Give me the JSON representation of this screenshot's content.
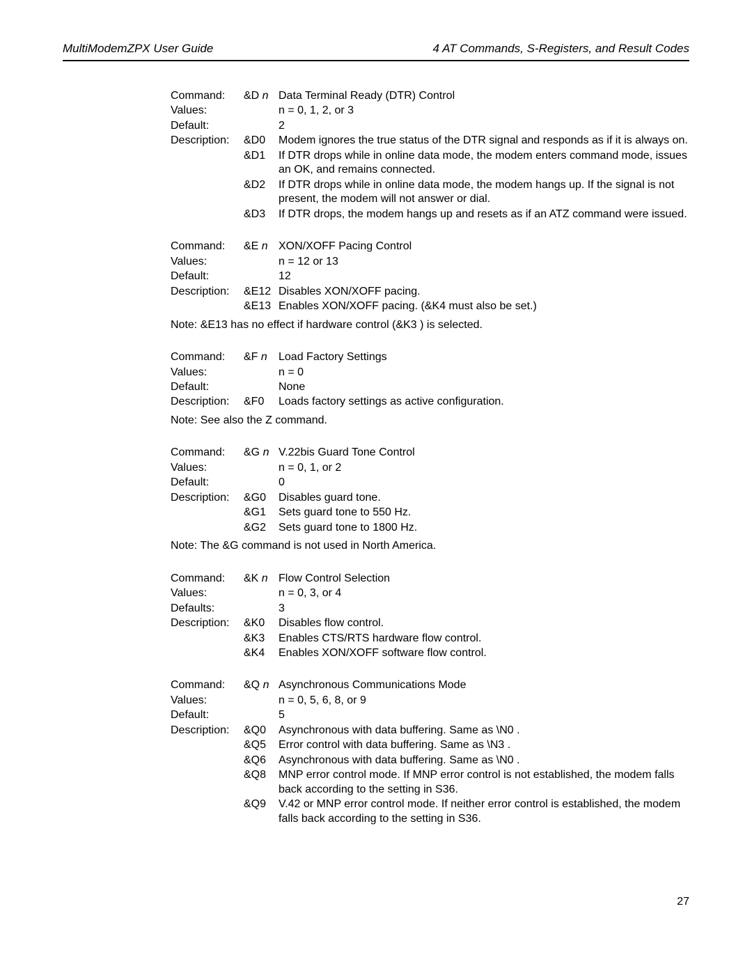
{
  "header": {
    "left": "MultiModemZPX User Guide",
    "right": "4   AT Commands, S-Registers, and Result Codes"
  },
  "page_number": "27",
  "blocks": [
    {
      "cmd_prefix": "&D",
      "title": "Data Terminal Ready (DTR) Control",
      "values": "n = 0, 1, 2, or 3",
      "default_label": "Default:",
      "default_val": "2",
      "desc": [
        {
          "code": "&D0",
          "text": "Modem ignores the true status of the DTR signal and responds as if it is always on."
        },
        {
          "code": "&D1",
          "text": "If DTR drops while in online data mode, the modem enters command mode, issues an OK, and remains connected."
        },
        {
          "code": "&D2",
          "text": "If DTR drops while in online data mode, the modem hangs up. If the signal is not present, the modem will not answer or dial."
        },
        {
          "code": "&D3",
          "text": "If DTR drops, the modem hangs up and resets as if an ATZ command were issued."
        }
      ],
      "note": ""
    },
    {
      "cmd_prefix": "&E",
      "title": "XON/XOFF Pacing Control",
      "values": "n = 12 or 13",
      "default_label": "Default:",
      "default_val": "12",
      "desc": [
        {
          "code": "&E12",
          "text": "Disables XON/XOFF pacing."
        },
        {
          "code": "&E13",
          "text": "Enables XON/XOFF pacing. (&K4  must also be set.)"
        }
      ],
      "note": "Note: &E13 has no effect if hardware control (&K3 ) is selected."
    },
    {
      "cmd_prefix": "&F",
      "title": "Load Factory Settings",
      "values": "n = 0",
      "default_label": "Default:",
      "default_val": "None",
      "desc": [
        {
          "code": "&F0",
          "text": "Loads factory settings as active configuration."
        }
      ],
      "note": "Note: See also the Z command."
    },
    {
      "cmd_prefix": "&G",
      "title": "V.22bis Guard Tone Control",
      "values": "n = 0, 1, or 2",
      "default_label": "Default:",
      "default_val": "0",
      "desc": [
        {
          "code": "&G0",
          "text": "Disables guard tone."
        },
        {
          "code": "&G1",
          "text": "Sets guard tone to 550 Hz."
        },
        {
          "code": "&G2",
          "text": "Sets guard tone to 1800 Hz."
        }
      ],
      "note": "Note: The &G  command is not used in North America."
    },
    {
      "cmd_prefix": "&K",
      "title": "Flow Control Selection",
      "values": "n = 0, 3, or 4",
      "default_label": "Defaults:",
      "default_val": "3",
      "desc": [
        {
          "code": "&K0",
          "text": "Disables flow control."
        },
        {
          "code": "&K3",
          "text": "Enables CTS/RTS hardware flow control."
        },
        {
          "code": "&K4",
          "text": "Enables XON/XOFF software flow control."
        }
      ],
      "note": ""
    },
    {
      "cmd_prefix": "&Q",
      "title": "Asynchronous Communications Mode",
      "values": "n = 0, 5, 6, 8, or 9",
      "default_label": "Default:",
      "default_val": "5",
      "desc": [
        {
          "code": "&Q0",
          "text": "Asynchronous with data buffering. Same as  \\N0 ."
        },
        {
          "code": "&Q5",
          "text": "Error control with data buffering. Same as  \\N3 ."
        },
        {
          "code": "&Q6",
          "text": "Asynchronous with data buffering. Same as  \\N0 ."
        },
        {
          "code": "&Q8",
          "text": "MNP error control mode. If MNP error control is not established, the modem falls back according to the setting in S36."
        },
        {
          "code": "&Q9",
          "text": "V.42 or MNP error control mode. If neither error control is established, the modem falls back according to the setting in S36."
        }
      ],
      "note": ""
    }
  ],
  "labels": {
    "command": "Command:",
    "values": "Values:",
    "description": "Description:",
    "n": "n"
  }
}
